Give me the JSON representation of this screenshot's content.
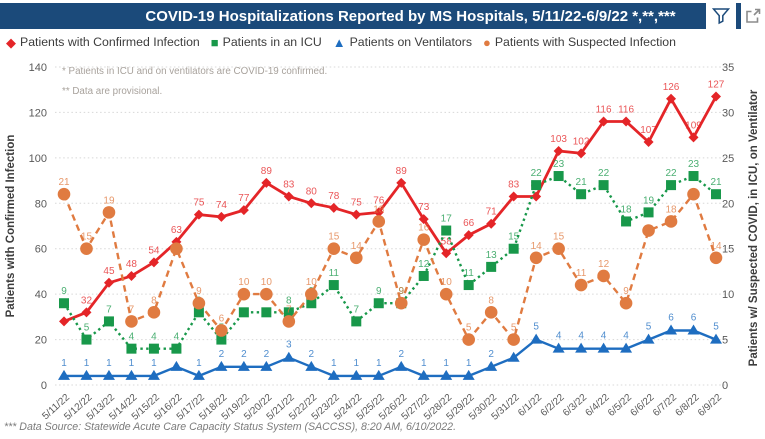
{
  "title_bar": {
    "title": "COVID-19 Hospitalizations Reported by MS Hospitals, 5/11/22-6/9/22 *,**,***",
    "accent_color": "#1b4a7a"
  },
  "legend": {
    "items": [
      {
        "label": "Patients with Confirmed Infection",
        "marker": "diamond",
        "color": "#e42528"
      },
      {
        "label": "Patients in an ICU",
        "marker": "square",
        "color": "#18984a"
      },
      {
        "label": "Patients on Ventilators",
        "marker": "triangle",
        "color": "#1e6dc0"
      },
      {
        "label": "Patients with Suspected Infection",
        "marker": "circle",
        "color": "#e07b41"
      }
    ]
  },
  "plot_notes": [
    "* Patients in ICU and on ventilators are COVID-19 confirmed.",
    "** Data are provisional."
  ],
  "footnote": "*** Data Source: Statewide Acute Care Capacity Status System (SACCSS), 8:20 AM, 6/10/2022.",
  "chart_data": {
    "type": "line",
    "title": "COVID-19 Hospitalizations Reported by MS Hospitals, 5/11/22-6/9/22 *,**,***",
    "grid": "horizontal-dotted",
    "legend_position": "top-left",
    "x": [
      "5/11/22",
      "5/12/22",
      "5/13/22",
      "5/14/22",
      "5/15/22",
      "5/16/22",
      "5/17/22",
      "5/18/22",
      "5/19/22",
      "5/20/22",
      "5/21/22",
      "5/22/22",
      "5/23/22",
      "5/24/22",
      "5/25/22",
      "5/26/22",
      "5/27/22",
      "5/28/22",
      "5/29/22",
      "5/30/22",
      "5/31/22",
      "6/1/22",
      "6/2/22",
      "6/3/22",
      "6/4/22",
      "6/5/22",
      "6/6/22",
      "6/7/22",
      "6/8/22",
      "6/9/22"
    ],
    "series": [
      {
        "name": "Patients with Confirmed Infection",
        "axis": "left",
        "color": "#e42528",
        "marker": "diamond",
        "line_style": "solid",
        "values": [
          28,
          32,
          45,
          48,
          54,
          63,
          75,
          74,
          77,
          89,
          83,
          80,
          78,
          75,
          76,
          89,
          73,
          58,
          66,
          71,
          83,
          83,
          103,
          102,
          116,
          116,
          107,
          126,
          109,
          127
        ],
        "hidden_labels": [
          0
        ]
      },
      {
        "name": "Patients in an ICU",
        "axis": "right",
        "color": "#18984a",
        "marker": "square",
        "line_style": "dotted",
        "values": [
          9,
          5,
          7,
          4,
          4,
          4,
          8,
          5,
          8,
          8,
          8,
          9,
          11,
          7,
          9,
          9,
          12,
          17,
          11,
          13,
          15,
          22,
          23,
          21,
          22,
          18,
          19,
          22,
          23,
          21
        ],
        "hidden_labels": [
          8,
          9
        ]
      },
      {
        "name": "Patients on Ventilators",
        "axis": "right",
        "color": "#1e6dc0",
        "marker": "triangle",
        "line_style": "solid",
        "values": [
          1,
          1,
          1,
          1,
          1,
          2,
          1,
          2,
          2,
          2,
          3,
          2,
          1,
          1,
          1,
          2,
          1,
          1,
          1,
          2,
          3,
          5,
          4,
          4,
          4,
          4,
          5,
          6,
          6,
          5
        ],
        "hidden_labels": [
          5,
          20
        ]
      },
      {
        "name": "Patients with Suspected Infection",
        "axis": "right",
        "color": "#e07b41",
        "marker": "circle",
        "line_style": "dashed",
        "values": [
          21,
          15,
          19,
          7,
          8,
          15,
          9,
          6,
          10,
          10,
          7,
          10,
          15,
          14,
          18,
          9,
          16,
          10,
          5,
          8,
          5,
          14,
          15,
          11,
          12,
          9,
          17,
          18,
          21,
          14
        ],
        "hidden_labels": [
          5,
          26,
          28
        ]
      }
    ],
    "left_axis": {
      "title": "Patients with Confirmed Infection",
      "min": 0,
      "max": 140,
      "ticks": [
        0,
        20,
        40,
        60,
        80,
        100,
        120,
        140
      ]
    },
    "right_axis": {
      "title": "Patients w/ Suspected COVID, in ICU, on Ventilator",
      "min": 0,
      "max": 35,
      "ticks": [
        0,
        5,
        10,
        15,
        20,
        25,
        30,
        35
      ]
    }
  }
}
